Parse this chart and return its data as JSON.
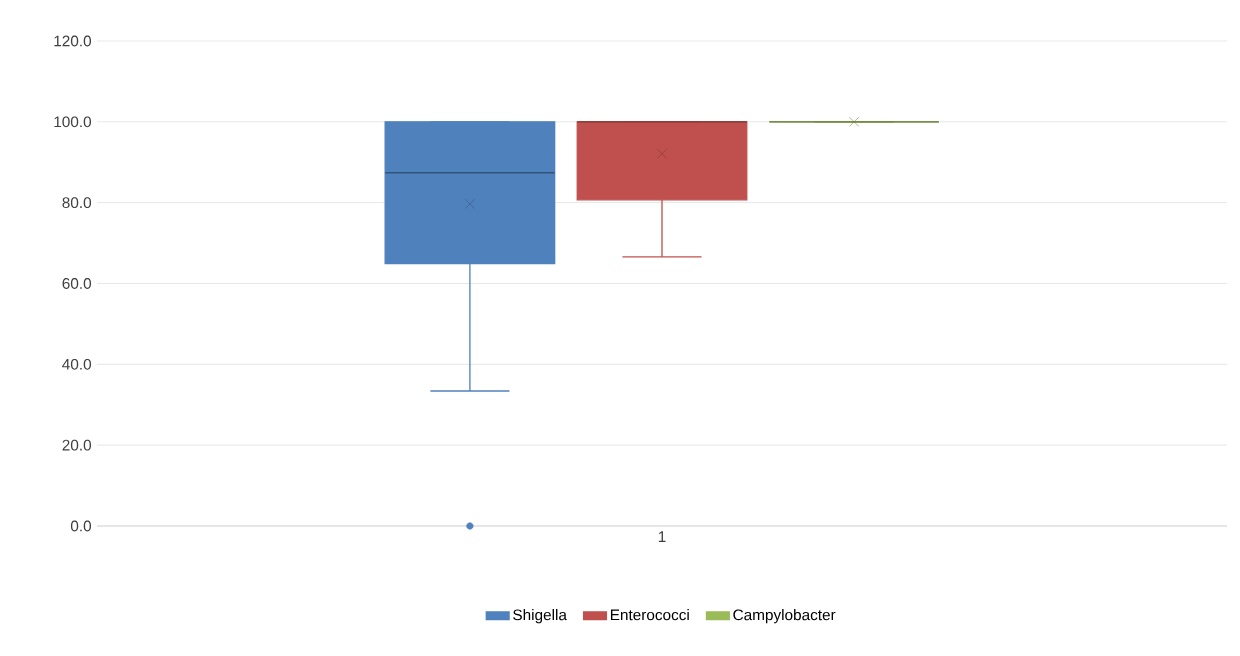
{
  "chart_data": {
    "type": "box",
    "categories": [
      "1"
    ],
    "series": [
      {
        "name": "Shigella",
        "color": "#4f81bd",
        "boxes": [
          {
            "low": 33.4,
            "q1": 64.9,
            "median": 87.4,
            "q3": 100,
            "high": 100,
            "mean": 79.7,
            "outliers": [
              0
            ]
          }
        ]
      },
      {
        "name": "Enterococci",
        "color": "#c0504d",
        "boxes": [
          {
            "low": 66.6,
            "q1": 80.7,
            "median": 100,
            "q3": 100,
            "high": 100,
            "mean": 92.1
          }
        ]
      },
      {
        "name": "Campylobacter",
        "color": "#9bbb59",
        "boxes": [
          {
            "low": 100,
            "q1": 100,
            "median": 100,
            "q3": 100,
            "high": 100,
            "mean": 100
          }
        ]
      }
    ],
    "ylim": [
      0,
      120
    ],
    "yticks": [
      {
        "value": 0,
        "label": "0.0"
      },
      {
        "value": 20,
        "label": "20.0"
      },
      {
        "value": 40,
        "label": "40.0"
      },
      {
        "value": 60,
        "label": "60.0"
      },
      {
        "value": 80,
        "label": "80.0"
      },
      {
        "value": 100,
        "label": "100.0"
      },
      {
        "value": 120,
        "label": "120.0"
      }
    ],
    "grid": "y",
    "legend": "bottom",
    "marker": "cross"
  }
}
